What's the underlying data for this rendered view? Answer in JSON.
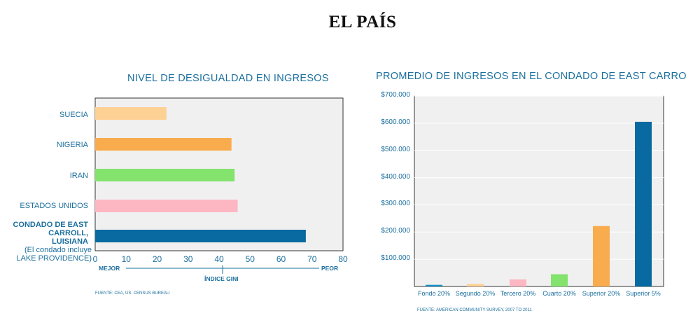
{
  "logo": "EL PAÍS",
  "chart_data": [
    {
      "type": "bar",
      "orientation": "horizontal",
      "title": "NIVEL DE DESIGUALDAD EN INGRESOS",
      "categories": [
        "SUECIA",
        "NIGERIA",
        "IRAN",
        "ESTADOS UNIDOS",
        "CONDADO DE EAST CARROLL, LUISIANA"
      ],
      "category_note": "(El condado incluye LAKE PROVIDENCE)",
      "values": [
        23,
        44,
        45,
        46,
        68
      ],
      "colors": [
        "#fdd193",
        "#f9ac4d",
        "#83e36d",
        "#fdb7c2",
        "#086aa0"
      ],
      "xlim": [
        0,
        80
      ],
      "xticks": [
        "0",
        "10",
        "20",
        "30",
        "40",
        "50",
        "60",
        "70",
        "80"
      ],
      "xlabel": "ÍNDICE GINI",
      "axis_left_label": "MEJOR",
      "axis_right_label": "PEOR",
      "source": "FUENTE: CEA, US. CENSUS BUREAU"
    },
    {
      "type": "bar",
      "title": "PROMEDIO DE INGRESOS EN EL CONDADO DE EAST CARROLL",
      "categories": [
        "Fondo 20%",
        "Segundo 20%",
        "Tercero 20%",
        "Cuarto 20%",
        "Superior 20%",
        "Superior 5%"
      ],
      "values": [
        6000,
        9000,
        26000,
        45000,
        222000,
        605000
      ],
      "colors": [
        "#1a8fc7",
        "#fdd193",
        "#fdb7c2",
        "#83e36d",
        "#f9ac4d",
        "#086aa0"
      ],
      "ylim": [
        0,
        700000
      ],
      "yticks": [
        "$100.000",
        "$200.000",
        "$300.000",
        "$400.000",
        "$500.000",
        "$600.000",
        "$700.000"
      ],
      "source": "FUENTE: AMERICAN COMMUNITY SURVEY, 2007 TO 2011"
    }
  ]
}
